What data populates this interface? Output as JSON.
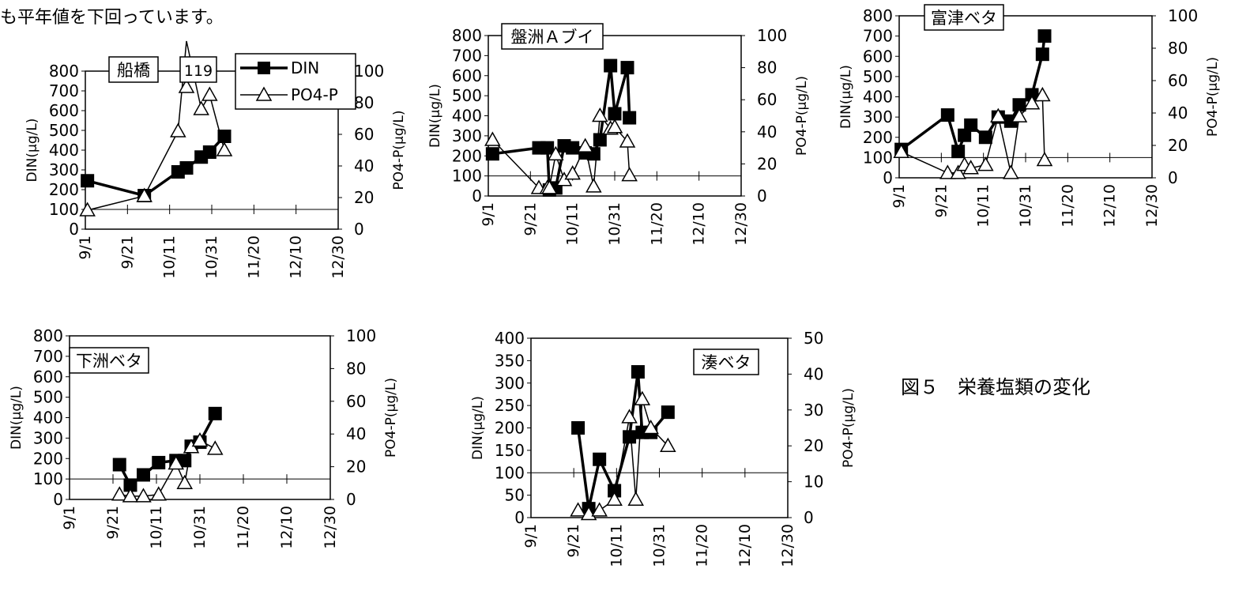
{
  "page": {
    "top_caption": "も平年値を下回っています。",
    "figure_caption": "図５　栄養塩類の変化"
  },
  "colors": {
    "din": "#000000",
    "po4": "#000000",
    "frame": "#000000",
    "marker_fill_po4": "#ffffff"
  },
  "chart_data": [
    {
      "type": "line",
      "title": "船橋",
      "ylabel": "DIN(μg/L)",
      "y2label": "PO4-P(μg/L)",
      "ylim": [
        0,
        800
      ],
      "y2lim": [
        0,
        100
      ],
      "yticks": [
        0,
        100,
        200,
        300,
        400,
        500,
        600,
        700,
        800
      ],
      "y2ticks": [
        0,
        20,
        40,
        60,
        80,
        100
      ],
      "xticks": [
        "9/1",
        "9/21",
        "10/11",
        "10/31",
        "11/20",
        "12/10",
        "12/30"
      ],
      "ref_line_y": 100,
      "legend": {
        "position": "top-right",
        "entries": [
          "DIN",
          "PO4-P"
        ]
      },
      "annotation": "119",
      "series": [
        {
          "name": "DIN",
          "axis": "left",
          "marker": "square",
          "x": [
            "9/2",
            "9/29",
            "10/15",
            "10/19",
            "10/26",
            "10/30",
            "11/6"
          ],
          "y": [
            245,
            170,
            290,
            310,
            365,
            390,
            470
          ]
        },
        {
          "name": "PO4-P",
          "axis": "right",
          "marker": "triangle",
          "x": [
            "9/2",
            "9/29",
            "10/15",
            "10/19",
            "10/26",
            "10/30",
            "11/6"
          ],
          "y": [
            12,
            21,
            62,
            119,
            76,
            85,
            50
          ]
        }
      ]
    },
    {
      "type": "line",
      "title": "盤洲Ａブイ",
      "ylabel": "DIN(μg/L)",
      "y2label": "PO4-P(μg/L)",
      "ylim": [
        0,
        800
      ],
      "y2lim": [
        0,
        100
      ],
      "yticks": [
        0,
        100,
        200,
        300,
        400,
        500,
        600,
        700,
        800
      ],
      "y2ticks": [
        0,
        20,
        40,
        60,
        80,
        100
      ],
      "xticks": [
        "9/1",
        "9/21",
        "10/11",
        "10/31",
        "11/20",
        "12/10",
        "12/30"
      ],
      "ref_line_y": 100,
      "series": [
        {
          "name": "DIN",
          "axis": "left",
          "marker": "square",
          "x": [
            "9/3",
            "9/25",
            "9/29",
            "9/30",
            "10/3",
            "10/7",
            "10/11",
            "10/17",
            "10/21",
            "10/24",
            "10/29",
            "10/31",
            "11/6",
            "11/7"
          ],
          "y": [
            210,
            240,
            240,
            30,
            40,
            250,
            240,
            215,
            210,
            280,
            650,
            410,
            640,
            390
          ]
        },
        {
          "name": "PO4-P",
          "axis": "right",
          "marker": "triangle",
          "x": [
            "9/3",
            "9/25",
            "9/29",
            "9/30",
            "10/3",
            "10/7",
            "10/11",
            "10/17",
            "10/21",
            "10/24",
            "10/29",
            "10/31",
            "11/6",
            "11/7"
          ],
          "y": [
            35,
            5,
            5,
            5,
            26,
            10,
            14,
            31,
            6,
            50,
            42,
            43,
            34,
            13
          ]
        }
      ]
    },
    {
      "type": "line",
      "title": "富津ベタ",
      "ylabel": "DIN(μg/L)",
      "y2label": "PO4-P(μg/L)",
      "ylim": [
        0,
        800
      ],
      "y2lim": [
        0,
        100
      ],
      "yticks": [
        0,
        100,
        200,
        300,
        400,
        500,
        600,
        700,
        800
      ],
      "y2ticks": [
        0,
        20,
        40,
        60,
        80,
        100
      ],
      "xticks": [
        "9/1",
        "9/21",
        "10/11",
        "10/31",
        "11/20",
        "12/10",
        "12/30"
      ],
      "ref_line_y": 100,
      "series": [
        {
          "name": "DIN",
          "axis": "left",
          "marker": "square",
          "x": [
            "9/2",
            "9/24",
            "9/29",
            "10/2",
            "10/5",
            "10/12",
            "10/18",
            "10/24",
            "10/28",
            "11/3",
            "11/8",
            "11/9"
          ],
          "y": [
            140,
            310,
            130,
            210,
            260,
            200,
            300,
            280,
            360,
            410,
            610,
            700
          ]
        },
        {
          "name": "PO4-P",
          "axis": "right",
          "marker": "triangle",
          "x": [
            "9/2",
            "9/24",
            "9/29",
            "10/2",
            "10/5",
            "10/12",
            "10/18",
            "10/24",
            "10/28",
            "11/3",
            "11/8",
            "11/9"
          ],
          "y": [
            16,
            3,
            3,
            8,
            6,
            8,
            38,
            3,
            38,
            46,
            51,
            11
          ]
        }
      ]
    },
    {
      "type": "line",
      "title": "下洲ベタ",
      "ylabel": "DIN(μg/L)",
      "y2label": "PO4-P(μg/L)",
      "ylim": [
        0,
        800
      ],
      "y2lim": [
        0,
        100
      ],
      "yticks": [
        0,
        100,
        200,
        300,
        400,
        500,
        600,
        700,
        800
      ],
      "y2ticks": [
        0,
        20,
        40,
        60,
        80,
        100
      ],
      "xticks": [
        "9/1",
        "9/21",
        "10/11",
        "10/31",
        "11/20",
        "12/10",
        "12/30"
      ],
      "ref_line_y": 100,
      "series": [
        {
          "name": "DIN",
          "axis": "left",
          "marker": "square",
          "x": [
            "9/24",
            "9/29",
            "10/5",
            "10/12",
            "10/20",
            "10/24",
            "10/27",
            "10/31",
            "11/7"
          ],
          "y": [
            170,
            70,
            120,
            180,
            190,
            190,
            260,
            280,
            420
          ]
        },
        {
          "name": "PO4-P",
          "axis": "right",
          "marker": "triangle",
          "x": [
            "9/24",
            "9/29",
            "10/5",
            "10/12",
            "10/20",
            "10/24",
            "10/27",
            "10/31",
            "11/7"
          ],
          "y": [
            3,
            2,
            2,
            3,
            22,
            10,
            32,
            36,
            31
          ]
        }
      ]
    },
    {
      "type": "line",
      "title": "湊ベタ",
      "ylabel": "DIN(μg/L)",
      "y2label": "PO4-P(μg/L)",
      "ylim": [
        0,
        400
      ],
      "y2lim": [
        0,
        50
      ],
      "yticks": [
        0,
        50,
        100,
        150,
        200,
        250,
        300,
        350,
        400
      ],
      "y2ticks": [
        0,
        10,
        20,
        30,
        40,
        50
      ],
      "xticks": [
        "9/1",
        "9/21",
        "10/11",
        "10/31",
        "11/20",
        "12/10",
        "12/30"
      ],
      "ref_line_y": 100,
      "series": [
        {
          "name": "DIN",
          "axis": "left",
          "marker": "square",
          "x": [
            "9/23",
            "9/28",
            "10/3",
            "10/10",
            "10/17",
            "10/21",
            "10/23",
            "10/27",
            "11/4"
          ],
          "y": [
            200,
            20,
            130,
            60,
            180,
            325,
            190,
            190,
            235
          ]
        },
        {
          "name": "PO4-P",
          "axis": "right",
          "marker": "triangle",
          "x": [
            "9/23",
            "9/28",
            "10/3",
            "10/10",
            "10/17",
            "10/20",
            "10/23",
            "10/27",
            "11/4"
          ],
          "y": [
            2,
            1,
            2,
            5,
            28,
            5,
            33,
            25,
            20
          ]
        }
      ]
    }
  ]
}
